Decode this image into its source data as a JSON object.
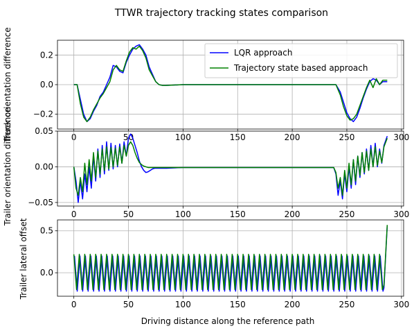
{
  "figure": {
    "title": "TTWR trajectory tracking states comparison",
    "legend": [
      {
        "label": "LQR approach",
        "color": "#0000ff"
      },
      {
        "label": "Trajectory state based approach",
        "color": "#008000"
      }
    ]
  },
  "chart_data": [
    {
      "type": "line",
      "ylabel": "Truck orientation difference",
      "xlabel": "",
      "xlim": [
        -15,
        302
      ],
      "ylim": [
        -0.3,
        0.3
      ],
      "xticks": [
        0,
        50,
        100,
        150,
        200,
        250,
        300
      ],
      "xtick_labels": [
        "0",
        "50",
        "100",
        "150",
        "200",
        "250",
        "300"
      ],
      "yticks": [
        -0.2,
        0.0,
        0.2
      ],
      "ytick_labels": [
        "−0.2",
        "0.0",
        "0.2"
      ],
      "grid": true,
      "legend_position": "upper right",
      "series": [
        {
          "name": "LQR approach",
          "color": "#0000ff",
          "x": [
            0,
            3,
            6,
            9,
            12,
            15,
            18,
            21,
            24,
            27,
            30,
            33,
            36,
            39,
            42,
            45,
            48,
            51,
            54,
            57,
            60,
            63,
            66,
            69,
            72,
            75,
            78,
            81,
            84,
            100,
            150,
            200,
            240,
            244,
            247,
            250,
            253,
            256,
            259,
            262,
            265,
            268,
            271,
            274,
            277,
            280,
            283,
            287
          ],
          "y": [
            0.0,
            0.0,
            -0.1,
            -0.2,
            -0.25,
            -0.23,
            -0.18,
            -0.14,
            -0.08,
            -0.05,
            0.0,
            0.05,
            0.13,
            0.12,
            0.09,
            0.08,
            0.15,
            0.2,
            0.24,
            0.26,
            0.27,
            0.24,
            0.2,
            0.12,
            0.07,
            0.02,
            0.0,
            -0.005,
            -0.005,
            0.0,
            0.0,
            0.0,
            0.0,
            -0.05,
            -0.12,
            -0.19,
            -0.23,
            -0.25,
            -0.22,
            -0.16,
            -0.09,
            -0.03,
            0.02,
            0.04,
            0.03,
            0.0,
            0.02,
            0.02
          ]
        },
        {
          "name": "Trajectory state based approach",
          "color": "#008000",
          "x": [
            0,
            3,
            6,
            9,
            12,
            15,
            18,
            21,
            24,
            27,
            30,
            33,
            36,
            39,
            42,
            45,
            48,
            51,
            54,
            57,
            60,
            63,
            66,
            69,
            72,
            75,
            78,
            81,
            84,
            100,
            150,
            200,
            240,
            244,
            247,
            250,
            253,
            256,
            259,
            262,
            265,
            268,
            271,
            274,
            277,
            280,
            283,
            287
          ],
          "y": [
            0.0,
            0.0,
            -0.13,
            -0.22,
            -0.25,
            -0.22,
            -0.17,
            -0.13,
            -0.09,
            -0.06,
            -0.02,
            0.02,
            0.1,
            0.13,
            0.1,
            0.09,
            0.16,
            0.22,
            0.25,
            0.24,
            0.26,
            0.23,
            0.18,
            0.1,
            0.06,
            0.02,
            0.0,
            -0.005,
            -0.005,
            0.0,
            0.0,
            0.0,
            0.0,
            -0.07,
            -0.15,
            -0.21,
            -0.24,
            -0.23,
            -0.2,
            -0.14,
            -0.08,
            -0.02,
            0.03,
            -0.02,
            0.04,
            0.0,
            0.03,
            0.03
          ]
        }
      ]
    },
    {
      "type": "line",
      "ylabel": "Trailer orientation difference",
      "xlabel": "",
      "xlim": [
        -15,
        302
      ],
      "ylim": [
        -0.055,
        0.05
      ],
      "xticks": [
        0,
        50,
        100,
        150,
        200,
        250,
        300
      ],
      "xtick_labels": [
        "0",
        "50",
        "100",
        "150",
        "200",
        "250",
        "300"
      ],
      "yticks": [
        -0.05,
        0.0,
        0.05
      ],
      "ytick_labels": [
        "−0.05",
        "0.00",
        "0.05"
      ],
      "grid": true,
      "series": [
        {
          "name": "LQR approach",
          "color": "#0000ff",
          "x": [
            0,
            2,
            4,
            6,
            8,
            10,
            12,
            14,
            16,
            18,
            20,
            22,
            24,
            26,
            28,
            30,
            32,
            34,
            36,
            38,
            40,
            42,
            44,
            46,
            48,
            50,
            52,
            54,
            56,
            58,
            60,
            62,
            64,
            66,
            68,
            70,
            72,
            74,
            76,
            78,
            80,
            85,
            100,
            150,
            200,
            238,
            240,
            242,
            244,
            246,
            248,
            250,
            252,
            254,
            256,
            258,
            260,
            262,
            264,
            266,
            268,
            270,
            272,
            274,
            276,
            278,
            280,
            282,
            284,
            287
          ],
          "y": [
            0.0,
            -0.02,
            -0.05,
            -0.02,
            -0.045,
            -0.01,
            -0.035,
            0.0,
            -0.03,
            0.015,
            -0.02,
            0.025,
            -0.015,
            0.03,
            -0.01,
            0.035,
            -0.005,
            0.033,
            -0.003,
            0.03,
            0.0,
            0.032,
            0.005,
            0.035,
            0.015,
            0.04,
            0.046,
            0.04,
            0.03,
            0.02,
            0.008,
            0.0,
            -0.005,
            -0.008,
            -0.007,
            -0.005,
            -0.003,
            -0.002,
            -0.002,
            -0.002,
            -0.002,
            -0.002,
            -0.001,
            -0.001,
            -0.001,
            -0.001,
            -0.01,
            -0.04,
            -0.02,
            -0.045,
            -0.01,
            -0.035,
            0.0,
            -0.03,
            0.01,
            -0.025,
            0.015,
            -0.015,
            0.02,
            -0.01,
            0.025,
            -0.005,
            0.03,
            0.0,
            0.033,
            0.0,
            0.025,
            0.005,
            0.03,
            0.043
          ]
        },
        {
          "name": "Trajectory state based approach",
          "color": "#008000",
          "x": [
            0,
            2,
            4,
            6,
            8,
            10,
            12,
            14,
            16,
            18,
            20,
            22,
            24,
            26,
            28,
            30,
            32,
            34,
            36,
            38,
            40,
            42,
            44,
            46,
            48,
            50,
            52,
            54,
            56,
            58,
            60,
            62,
            64,
            66,
            68,
            70,
            72,
            74,
            76,
            78,
            80,
            85,
            100,
            150,
            200,
            238,
            240,
            242,
            244,
            246,
            248,
            250,
            252,
            254,
            256,
            258,
            260,
            262,
            264,
            266,
            268,
            270,
            272,
            274,
            276,
            278,
            280,
            282,
            284,
            287
          ],
          "y": [
            0.0,
            -0.03,
            -0.04,
            -0.015,
            -0.035,
            0.005,
            -0.025,
            0.01,
            -0.02,
            0.02,
            -0.015,
            0.022,
            -0.01,
            0.025,
            -0.005,
            0.028,
            -0.003,
            0.027,
            0.0,
            0.026,
            0.002,
            0.028,
            0.005,
            0.03,
            0.015,
            0.03,
            0.035,
            0.03,
            0.02,
            0.012,
            0.006,
            0.003,
            0.001,
            0.0,
            -0.001,
            -0.001,
            -0.001,
            -0.001,
            -0.001,
            -0.001,
            -0.001,
            -0.001,
            -0.001,
            -0.001,
            -0.001,
            -0.001,
            -0.008,
            -0.03,
            -0.015,
            -0.04,
            -0.005,
            -0.03,
            0.005,
            -0.025,
            0.01,
            -0.02,
            0.015,
            -0.012,
            0.02,
            -0.008,
            0.022,
            -0.005,
            0.025,
            0.0,
            0.028,
            0.002,
            0.022,
            0.006,
            0.028,
            0.04
          ]
        }
      ]
    },
    {
      "type": "line",
      "ylabel": "Trailer lateral offset",
      "xlabel": "Driving distance along the reference path",
      "xlim": [
        -15,
        302
      ],
      "ylim": [
        -0.28,
        0.63
      ],
      "xticks": [
        0,
        50,
        100,
        150,
        200,
        250,
        300
      ],
      "xtick_labels": [
        "0",
        "50",
        "100",
        "150",
        "200",
        "250",
        "300"
      ],
      "yticks": [
        0.0,
        0.5
      ],
      "ytick_labels": [
        "0.0",
        "0.5"
      ],
      "grid": true,
      "series": [
        {
          "name": "LQR approach",
          "color": "#0000ff",
          "oscillation": {
            "x_start": 0,
            "x_end": 284,
            "period": 5,
            "upper": 0.2,
            "lower": -0.22,
            "phase_shift": 0.6
          },
          "final_segment": {
            "x": [
              284,
              287
            ],
            "y": [
              -0.18,
              0.56
            ]
          }
        },
        {
          "name": "Trajectory state based approach",
          "color": "#008000",
          "oscillation": {
            "x_start": 0,
            "x_end": 284,
            "period": 5,
            "upper": 0.22,
            "lower": -0.2,
            "phase_shift": 0.0
          },
          "final_segment": {
            "x": [
              284,
              287
            ],
            "y": [
              -0.15,
              0.57
            ]
          }
        }
      ]
    }
  ]
}
